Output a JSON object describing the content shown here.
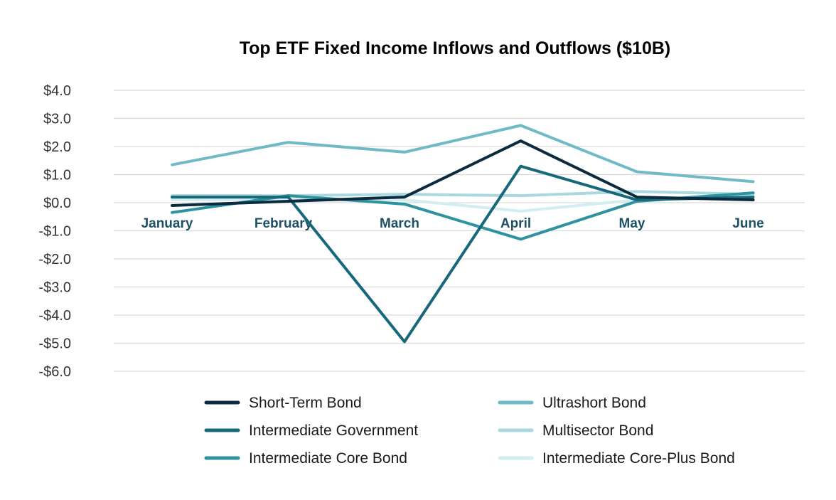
{
  "chart_data": {
    "type": "line",
    "title": "Top ETF Fixed Income Inflows and Outflows  ($10B)",
    "categories": [
      "January",
      "February",
      "March",
      "April",
      "May",
      "June"
    ],
    "ylim": [
      -6,
      4
    ],
    "yticks": [
      {
        "value": 4,
        "label": "$4.0"
      },
      {
        "value": 3,
        "label": "$3.0"
      },
      {
        "value": 2,
        "label": "$2.0"
      },
      {
        "value": 1,
        "label": "$1.0"
      },
      {
        "value": 0,
        "label": "$0.0"
      },
      {
        "value": -1,
        "label": "-$1.0"
      },
      {
        "value": -2,
        "label": "-$2.0"
      },
      {
        "value": -3,
        "label": "-$3.0"
      },
      {
        "value": -4,
        "label": "-$4.0"
      },
      {
        "value": -5,
        "label": "-$5.0"
      },
      {
        "value": -6,
        "label": "-$6.0"
      }
    ],
    "grid": true,
    "legend_position": "bottom",
    "series": [
      {
        "name": "Short-Term Bond",
        "color": "#0d2b3e",
        "values": [
          -0.1,
          0.05,
          0.2,
          2.2,
          0.2,
          0.1
        ]
      },
      {
        "name": "Ultrashort Bond",
        "color": "#6fbac5",
        "values": [
          1.35,
          2.15,
          1.8,
          2.75,
          1.1,
          0.75
        ]
      },
      {
        "name": "Intermediate Government",
        "color": "#17687a",
        "values": [
          0.2,
          0.2,
          -4.95,
          1.3,
          0.1,
          0.2
        ]
      },
      {
        "name": "Multisector Bond",
        "color": "#a9d9df",
        "values": [
          0.25,
          0.25,
          0.3,
          0.25,
          0.4,
          0.3
        ]
      },
      {
        "name": "Intermediate Core Bond",
        "color": "#2e93a0",
        "values": [
          -0.35,
          0.25,
          -0.05,
          -1.3,
          0.05,
          0.35
        ]
      },
      {
        "name": "Intermediate Core-Plus Bond",
        "color": "#d3eef1",
        "values": [
          0.1,
          0.1,
          0.1,
          -0.3,
          0.1,
          0.3
        ]
      }
    ]
  }
}
